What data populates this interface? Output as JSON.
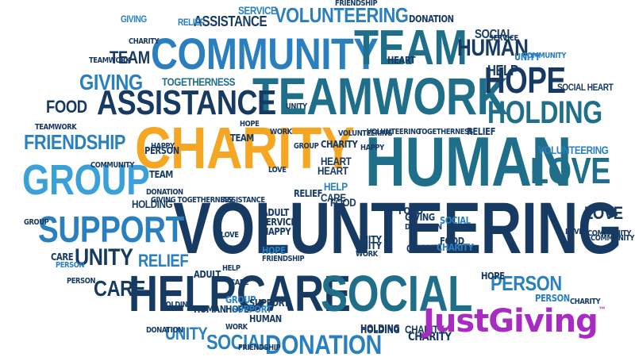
{
  "colors": {
    "navy": "#173a63",
    "teal": "#1f6f8b",
    "blue": "#2a7fbf",
    "sky": "#3aa0d9",
    "cyan": "#59b7d6",
    "yellow": "#f5a623",
    "logo": "#a82bc4"
  },
  "logo": {
    "text": "JustGiving",
    "tm": "™",
    "icon": "justgiving-logo"
  },
  "words": [
    {
      "id": "charity",
      "t": "CHARITY"
    },
    {
      "id": "volunteering-big",
      "t": "VOLUNTEERING"
    },
    {
      "id": "human-big",
      "t": "HUMAN"
    },
    {
      "id": "teamwork",
      "t": "TEAMWORK"
    },
    {
      "id": "community",
      "t": "COMMUNITY"
    },
    {
      "id": "team-big",
      "t": "TEAM"
    },
    {
      "id": "assistance",
      "t": "ASSISTANCE"
    },
    {
      "id": "group",
      "t": "GROUP"
    },
    {
      "id": "support",
      "t": "SUPPORT"
    },
    {
      "id": "help",
      "t": "HELP"
    },
    {
      "id": "care-big",
      "t": "CARE"
    },
    {
      "id": "social-big",
      "t": "SOCIAL"
    },
    {
      "id": "love-big",
      "t": "LOVE"
    },
    {
      "id": "holding",
      "t": "HOLDING"
    },
    {
      "id": "hope",
      "t": "HOPE"
    },
    {
      "id": "human-2",
      "t": "HUMAN"
    },
    {
      "id": "donation",
      "t": "DONATION"
    },
    {
      "id": "volunteering-top",
      "t": "VOLUNTEERING"
    },
    {
      "id": "friendship",
      "t": "FRIENDSHIP"
    },
    {
      "id": "giving",
      "t": "GIVING"
    },
    {
      "id": "food",
      "t": "FOOD"
    },
    {
      "id": "unity",
      "t": "UNITY"
    },
    {
      "id": "care-2",
      "t": "CARE"
    },
    {
      "id": "relief",
      "t": "RELIEF"
    },
    {
      "id": "person",
      "t": "PERSON"
    },
    {
      "id": "love-2",
      "t": "LOVE"
    },
    {
      "id": "togetherness",
      "t": "TOGETHERNESS"
    },
    {
      "id": "team-2",
      "t": "TEAM"
    },
    {
      "id": "unity-2",
      "t": "UNITY"
    },
    {
      "id": "social-2",
      "t": "SOCIAL"
    },
    {
      "id": "volunteering-r",
      "t": "VOLUNTEERING"
    },
    {
      "id": "assistance-top",
      "t": "ASSISTANCE"
    },
    {
      "id": "service",
      "t": "SERVICE"
    },
    {
      "id": "relief-top",
      "t": "RELIEF"
    },
    {
      "id": "giving-top",
      "t": "GIVING"
    },
    {
      "id": "donation-top",
      "t": "DONATION"
    },
    {
      "id": "social-top",
      "t": "SOCIAL"
    },
    {
      "id": "service-top",
      "t": "SERVICE"
    },
    {
      "id": "heart",
      "t": "HEART"
    },
    {
      "id": "help-r",
      "t": "HELP"
    },
    {
      "id": "social-heart",
      "t": "SOCIAL HEART"
    },
    {
      "id": "community-r",
      "t": "COMMUNITY"
    },
    {
      "id": "person-2",
      "t": "PERSON"
    },
    {
      "id": "community-small",
      "t": "COMMUNITY"
    },
    {
      "id": "food-2",
      "t": "FOOD"
    },
    {
      "id": "giving-2",
      "t": "GIVING"
    },
    {
      "id": "holding-2",
      "t": "HOLDING"
    },
    {
      "id": "unity-3",
      "t": "UNITY"
    },
    {
      "id": "charity-2",
      "t": "CHARITY"
    },
    {
      "id": "group-2",
      "t": "GROUP"
    },
    {
      "id": "hope-2",
      "t": "HOPE"
    },
    {
      "id": "person-3",
      "t": "PERSON"
    },
    {
      "id": "care-3",
      "t": "CARE"
    },
    {
      "id": "love-3",
      "t": "LOVE"
    },
    {
      "id": "heart-2",
      "t": "HEART"
    },
    {
      "id": "help-2",
      "t": "HELP"
    },
    {
      "id": "relief-2",
      "t": "RELIEF"
    },
    {
      "id": "charity-3",
      "t": "CHARITY"
    },
    {
      "id": "volunteering-3",
      "t": "VOLUNTEERING"
    },
    {
      "id": "togetherness-2",
      "t": "TOGETHERNESS"
    },
    {
      "id": "donation-2",
      "t": "DONATION"
    },
    {
      "id": "friendship-2",
      "t": "FRIENDSHIP"
    },
    {
      "id": "adult",
      "t": "ADULT"
    },
    {
      "id": "team-3",
      "t": "TEAM"
    },
    {
      "id": "happy",
      "t": "HAPPY"
    },
    {
      "id": "support-2",
      "t": "SUPPORT"
    },
    {
      "id": "service-2",
      "t": "SERVICE"
    },
    {
      "id": "assistance-2",
      "t": "ASSISTANCE"
    },
    {
      "id": "hope-3",
      "t": "HOPE"
    },
    {
      "id": "giving-3",
      "t": "GIVING TOGETHERNESS"
    },
    {
      "id": "work",
      "t": "WORK"
    },
    {
      "id": "teamwork-2",
      "t": "TEAMWORK"
    },
    {
      "id": "friendship-3",
      "t": "FRIENDSHIP"
    },
    {
      "id": "human-3",
      "t": "HUMAN"
    },
    {
      "id": "help-3",
      "t": "HELP"
    },
    {
      "id": "group-3",
      "t": "GROUP"
    },
    {
      "id": "unity-4",
      "t": "UNITY"
    },
    {
      "id": "charity-4",
      "t": "CHARITY"
    },
    {
      "id": "adult-2",
      "t": "ADULT"
    },
    {
      "id": "love-4",
      "t": "LOVE"
    },
    {
      "id": "holding-3",
      "t": "HOLDING"
    },
    {
      "id": "food-3",
      "t": "FOOD"
    },
    {
      "id": "relief-3",
      "t": "RELIEF"
    },
    {
      "id": "heart-3",
      "t": "HEART"
    },
    {
      "id": "care-4",
      "t": "CARE"
    },
    {
      "id": "unity-5",
      "t": "UNITY"
    },
    {
      "id": "happy-2",
      "t": "HAPPY"
    },
    {
      "id": "team-4",
      "t": "TEAM"
    },
    {
      "id": "hope-4",
      "t": "HOPE"
    },
    {
      "id": "happy-3",
      "t": "HAPPY"
    },
    {
      "id": "unity-6",
      "t": "UNITY"
    },
    {
      "id": "work-2",
      "t": "WORK"
    },
    {
      "id": "charity-5",
      "t": "CHARITY"
    },
    {
      "id": "donation-3",
      "t": "DONATION"
    },
    {
      "id": "social-3",
      "t": "SOCIAL"
    },
    {
      "id": "group-4",
      "t": "GROUP"
    },
    {
      "id": "food-4",
      "t": "FOOD"
    },
    {
      "id": "charity-6",
      "t": "CHARITY"
    },
    {
      "id": "group-5",
      "t": "GROUP"
    },
    {
      "id": "support-3",
      "t": "SUPPORT"
    },
    {
      "id": "human-4",
      "t": "HUMAN"
    },
    {
      "id": "hope-5",
      "t": "HOPE"
    },
    {
      "id": "volunteering-4",
      "t": "VOLUNTEERING"
    },
    {
      "id": "holding-4",
      "t": "HOLDING"
    },
    {
      "id": "community-3",
      "t": "COMMUNITY"
    },
    {
      "id": "friendship-4",
      "t": "FRIENDSHIP"
    },
    {
      "id": "donation-4",
      "t": "DONATION"
    },
    {
      "id": "work-3",
      "t": "WORK"
    },
    {
      "id": "love-5",
      "t": "LOVE"
    },
    {
      "id": "person-4",
      "t": "PERSON"
    },
    {
      "id": "community-4",
      "t": "COMMUNITY"
    },
    {
      "id": "care-5",
      "t": "CARE"
    },
    {
      "id": "teamwork-3",
      "t": "TEAMWORK"
    },
    {
      "id": "person-5",
      "t": "PERSON"
    },
    {
      "id": "holding-5",
      "t": "HOLDING"
    },
    {
      "id": "charity-7",
      "t": "CHARITY"
    }
  ]
}
